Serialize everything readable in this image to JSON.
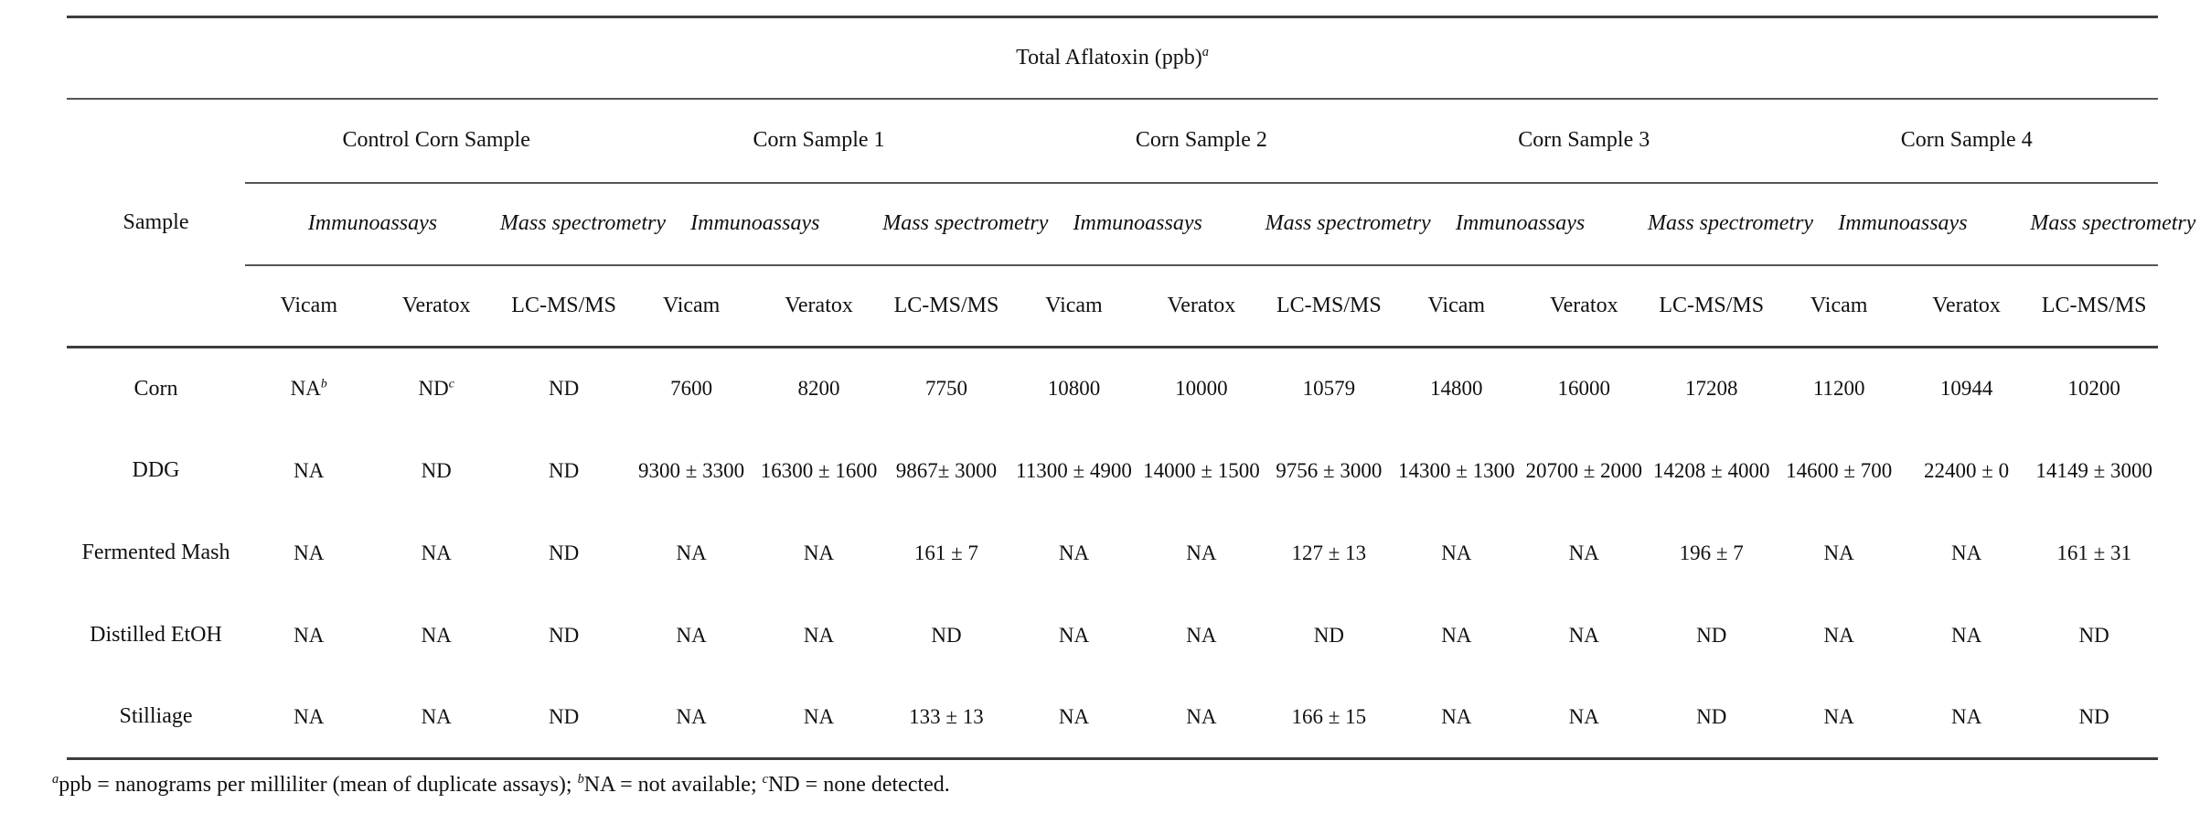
{
  "table": {
    "title": "Total Aflatoxin (ppb)^a",
    "sample_header": "Sample",
    "groups": [
      {
        "label": "Control Corn Sample"
      },
      {
        "label": "Corn Sample 1"
      },
      {
        "label": "Corn Sample 2"
      },
      {
        "label": "Corn Sample 3"
      },
      {
        "label": "Corn Sample 4"
      }
    ],
    "method_types": {
      "immunoassays": "Immunoassays",
      "mass_spectrometry": "Mass spectrometry"
    },
    "methods": {
      "vicam": "Vicam",
      "veratox": "Veratox",
      "lcmsms": "LC-MS/MS"
    },
    "rows": [
      {
        "label": "Corn",
        "cells": [
          "NA^b",
          "ND^c",
          "ND",
          "7600",
          "8200",
          "7750",
          "10800",
          "10000",
          "10579",
          "14800",
          "16000",
          "17208",
          "11200",
          "10944",
          "10200"
        ]
      },
      {
        "label": "DDG",
        "cells": [
          "NA",
          "ND",
          "ND",
          "9300 ± 3300",
          "16300 ± 1600",
          "9867± 3000",
          "11300 ± 4900",
          "14000 ± 1500",
          "9756 ± 3000",
          "14300 ± 1300",
          "20700 ± 2000",
          "14208 ± 4000",
          "14600 ± 700",
          "22400 ± 0",
          "14149 ± 3000"
        ]
      },
      {
        "label": "Fermented Mash",
        "cells": [
          "NA",
          "NA",
          "ND",
          "NA",
          "NA",
          "161 ± 7",
          "NA",
          "NA",
          "127 ± 13",
          "NA",
          "NA",
          "196 ± 7",
          "NA",
          "NA",
          "161 ± 31"
        ]
      },
      {
        "label": "Distilled EtOH",
        "cells": [
          "NA",
          "NA",
          "ND",
          "NA",
          "NA",
          "ND",
          "NA",
          "NA",
          "ND",
          "NA",
          "NA",
          "ND",
          "NA",
          "NA",
          "ND"
        ]
      },
      {
        "label": "Stilliage",
        "cells": [
          "NA",
          "NA",
          "ND",
          "NA",
          "NA",
          "133 ± 13",
          "NA",
          "NA",
          "166 ± 15",
          "NA",
          "NA",
          "ND",
          "NA",
          "NA",
          "ND"
        ]
      }
    ],
    "footnote": "^appb = nanograms per milliliter (mean of duplicate assays); ^bNA = not available; ^cND = none detected.",
    "rule_colors": {
      "thick": "#3d3d3d",
      "thin": "#565656"
    }
  }
}
